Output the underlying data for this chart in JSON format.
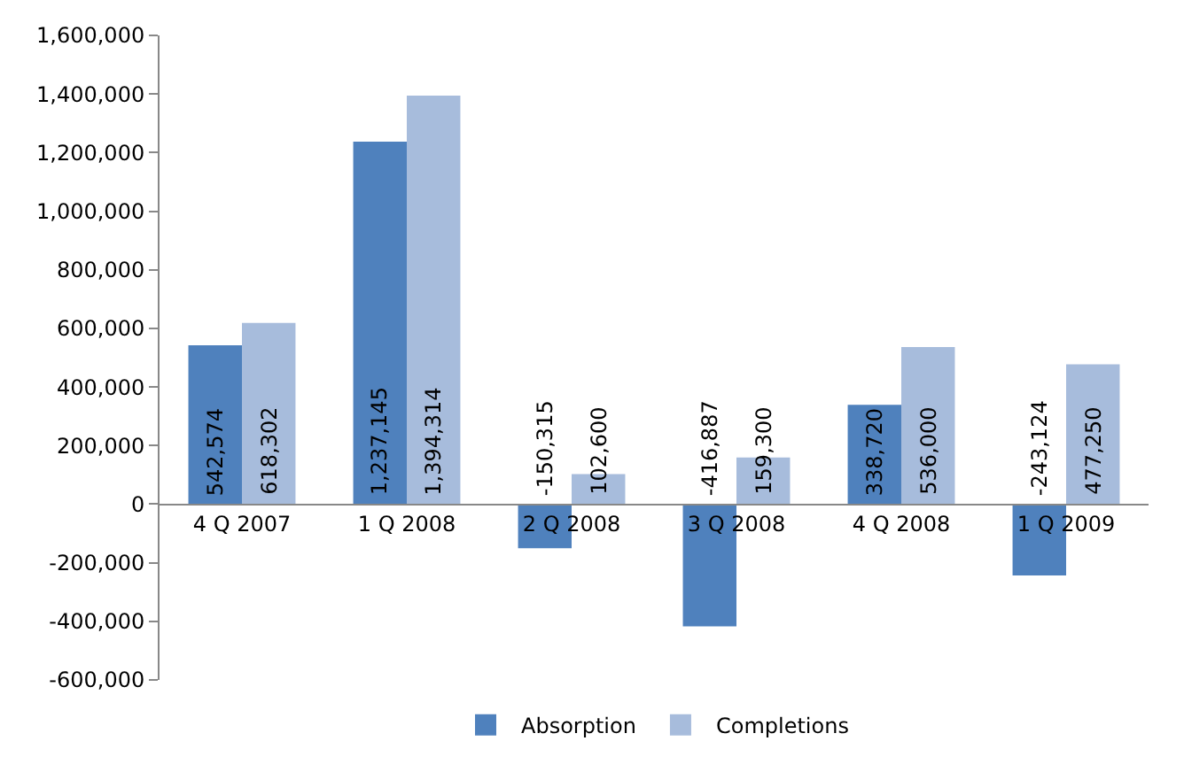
{
  "chart_data": {
    "type": "bar",
    "categories": [
      "4 Q 2007",
      "1 Q 2008",
      "2 Q 2008",
      "3 Q 2008",
      "4 Q 2008",
      "1 Q 2009"
    ],
    "series": [
      {
        "name": "Absorption",
        "color": "#4f81bd",
        "values": [
          542574,
          1237145,
          -150315,
          -416887,
          338720,
          -243124
        ],
        "value_labels": [
          "542,574",
          "1,237,145",
          "-150,315",
          "-416,887",
          "338,720",
          "-243,124"
        ]
      },
      {
        "name": "Completions",
        "color": "#a7bcdc",
        "values": [
          618302,
          1394314,
          102600,
          159300,
          536000,
          477250
        ],
        "value_labels": [
          "618,302",
          "1,394,314",
          "102,600",
          "159,300",
          "536,000",
          "477,250"
        ]
      }
    ],
    "ylim": [
      -600000,
      1600000
    ],
    "yticks": [
      {
        "value": -600000,
        "label": "-600,000"
      },
      {
        "value": -400000,
        "label": "-400,000"
      },
      {
        "value": -200000,
        "label": "-200,000"
      },
      0,
      {
        "value": 200000,
        "label": "200,000"
      },
      {
        "value": 400000,
        "label": "400,000"
      },
      {
        "value": 600000,
        "label": "600,000"
      },
      {
        "value": 800000,
        "label": "800,000"
      },
      {
        "value": 1000000,
        "label": "1,000,000"
      },
      {
        "value": 1200000,
        "label": "1,200,000"
      },
      {
        "value": 1400000,
        "label": "1,400,000"
      },
      {
        "value": 1600000,
        "label": "1,600,000"
      }
    ],
    "legend": "bottom"
  }
}
